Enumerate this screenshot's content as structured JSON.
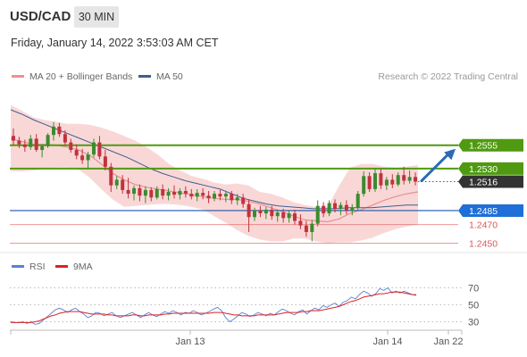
{
  "header": {
    "pair": "USD/CAD",
    "timeframe": "30 MIN",
    "datetime": "Friday, January 14, 2022 3:53:03 AM CET"
  },
  "legend": {
    "ma20_label": "MA 20 + Bollinger Bands",
    "ma50_label": "MA 50",
    "credit": "Research © 2022 Trading Central",
    "rsi_label": "RSI",
    "rsi_ma_label": "9MA"
  },
  "colors": {
    "resistance": "#4f9a10",
    "support_blue": "#1c56a6",
    "support_red": "#e05555",
    "current": "#333333",
    "candle_up": "#3a8c2f",
    "candle_down": "#c0333f",
    "bollinger_fill": "#f9d0d0",
    "ma20": "#e88f8f",
    "ma50": "#3d5f8f",
    "rsi": "#5b80d6",
    "rsi_ma": "#dd2222",
    "arrow": "#2a6bb8"
  },
  "chart_data": [
    {
      "type": "candlestick",
      "y_axis": "price",
      "ylim": [
        1.244,
        1.2615
      ],
      "levels": [
        {
          "name": "resistance-2",
          "value": 1.2555,
          "label": "1.2555",
          "style": "green-badge"
        },
        {
          "name": "resistance-1",
          "value": 1.253,
          "label": "1.2530",
          "style": "green-badge"
        },
        {
          "name": "current-price",
          "value": 1.2516,
          "label": "1.2516",
          "style": "dark-badge"
        },
        {
          "name": "support-1",
          "value": 1.2485,
          "label": "1.2485",
          "style": "blue-badge"
        },
        {
          "name": "support-2",
          "value": 1.247,
          "label": "1.2470",
          "style": "red-text"
        },
        {
          "name": "support-3",
          "value": 1.245,
          "label": "1.2450",
          "style": "red-text"
        }
      ],
      "candles": [
        [
          1.2565,
          1.2573,
          1.2555,
          1.256
        ],
        [
          1.256,
          1.2564,
          1.2552,
          1.2556
        ],
        [
          1.2556,
          1.2561,
          1.2548,
          1.2553
        ],
        [
          1.2553,
          1.2566,
          1.255,
          1.2562
        ],
        [
          1.2562,
          1.2567,
          1.2548,
          1.255
        ],
        [
          1.255,
          1.2556,
          1.2542,
          1.2554
        ],
        [
          1.2554,
          1.2568,
          1.2552,
          1.2566
        ],
        [
          1.2566,
          1.258,
          1.256,
          1.2575
        ],
        [
          1.2575,
          1.2579,
          1.2564,
          1.2567
        ],
        [
          1.2567,
          1.2571,
          1.2555,
          1.2558
        ],
        [
          1.2558,
          1.2562,
          1.2547,
          1.255
        ],
        [
          1.255,
          1.2556,
          1.254,
          1.2544
        ],
        [
          1.2544,
          1.2551,
          1.2535,
          1.2539
        ],
        [
          1.2539,
          1.2548,
          1.253,
          1.2545
        ],
        [
          1.2545,
          1.2562,
          1.2542,
          1.2558
        ],
        [
          1.2558,
          1.2565,
          1.254,
          1.2543
        ],
        [
          1.2543,
          1.255,
          1.2528,
          1.2532
        ],
        [
          1.2532,
          1.2536,
          1.2505,
          1.2512
        ],
        [
          1.2512,
          1.2522,
          1.2508,
          1.2518
        ],
        [
          1.2518,
          1.2523,
          1.2503,
          1.2507
        ],
        [
          1.2507,
          1.252,
          1.2498,
          1.2503
        ],
        [
          1.2503,
          1.2512,
          1.2496,
          1.2509
        ],
        [
          1.2509,
          1.2513,
          1.2495,
          1.2501
        ],
        [
          1.2501,
          1.2511,
          1.2493,
          1.2507
        ],
        [
          1.2507,
          1.251,
          1.2495,
          1.2499
        ],
        [
          1.2499,
          1.2511,
          1.2497,
          1.2508
        ],
        [
          1.2508,
          1.2513,
          1.2497,
          1.2501
        ],
        [
          1.2501,
          1.2509,
          1.2496,
          1.2505
        ],
        [
          1.2505,
          1.2512,
          1.2498,
          1.2502
        ],
        [
          1.2502,
          1.2509,
          1.2497,
          1.2506
        ],
        [
          1.2506,
          1.2511,
          1.2499,
          1.2503
        ],
        [
          1.2503,
          1.2508,
          1.2497,
          1.25
        ],
        [
          1.25,
          1.2508,
          1.2495,
          1.2504
        ],
        [
          1.2504,
          1.2509,
          1.2497,
          1.2501
        ],
        [
          1.2501,
          1.2506,
          1.2493,
          1.2498
        ],
        [
          1.2498,
          1.2506,
          1.2495,
          1.2503
        ],
        [
          1.2503,
          1.2507,
          1.2496,
          1.25
        ],
        [
          1.25,
          1.2506,
          1.2494,
          1.2503
        ],
        [
          1.2503,
          1.2506,
          1.2492,
          1.2496
        ],
        [
          1.2496,
          1.2503,
          1.2491,
          1.2499
        ],
        [
          1.2499,
          1.2503,
          1.2488,
          1.2492
        ],
        [
          1.2492,
          1.2497,
          1.2462,
          1.2478
        ],
        [
          1.2478,
          1.2488,
          1.2474,
          1.2485
        ],
        [
          1.2485,
          1.249,
          1.2478,
          1.2482
        ],
        [
          1.2482,
          1.2489,
          1.2476,
          1.2486
        ],
        [
          1.2486,
          1.249,
          1.2475,
          1.2479
        ],
        [
          1.2479,
          1.2486,
          1.2473,
          1.2483
        ],
        [
          1.2483,
          1.2487,
          1.2472,
          1.2477
        ],
        [
          1.2477,
          1.2485,
          1.2472,
          1.2482
        ],
        [
          1.2482,
          1.2486,
          1.247,
          1.2474
        ],
        [
          1.2474,
          1.2481,
          1.2465,
          1.2469
        ],
        [
          1.2469,
          1.2474,
          1.2457,
          1.2462
        ],
        [
          1.2462,
          1.2475,
          1.2452,
          1.2471
        ],
        [
          1.2471,
          1.2496,
          1.2468,
          1.249
        ],
        [
          1.249,
          1.2494,
          1.2478,
          1.2482
        ],
        [
          1.2482,
          1.2496,
          1.2479,
          1.2493
        ],
        [
          1.2493,
          1.2497,
          1.2483,
          1.2487
        ],
        [
          1.2487,
          1.2494,
          1.248,
          1.2491
        ],
        [
          1.2491,
          1.2496,
          1.2481,
          1.2485
        ],
        [
          1.2485,
          1.2492,
          1.248,
          1.2488
        ],
        [
          1.2488,
          1.2506,
          1.2485,
          1.2503
        ],
        [
          1.2503,
          1.2527,
          1.25,
          1.2522
        ],
        [
          1.2522,
          1.2526,
          1.2505,
          1.2508
        ],
        [
          1.2508,
          1.253,
          1.2505,
          1.2525
        ],
        [
          1.2525,
          1.253,
          1.2508,
          1.2512
        ],
        [
          1.2512,
          1.2521,
          1.2507,
          1.2518
        ],
        [
          1.2518,
          1.2524,
          1.2509,
          1.2513
        ],
        [
          1.2513,
          1.2526,
          1.2511,
          1.2523
        ],
        [
          1.2523,
          1.2532,
          1.2513,
          1.2517
        ],
        [
          1.2517,
          1.2528,
          1.2514,
          1.2521
        ],
        [
          1.2521,
          1.2526,
          1.2512,
          1.2516
        ]
      ],
      "bollinger": {
        "upper": [
          1.2598,
          1.2592,
          1.2585,
          1.2582,
          1.258,
          1.2578,
          1.2578,
          1.2577,
          1.2574,
          1.257,
          1.2565,
          1.256,
          1.2553,
          1.2545,
          1.2535,
          1.2528,
          1.2522,
          1.2519,
          1.2515,
          1.2513,
          1.2514,
          1.2512,
          1.2505,
          1.2503,
          1.2499,
          1.2494,
          1.2491,
          1.2489,
          1.2489,
          1.2511,
          1.2531,
          1.2535,
          1.2535,
          1.2532,
          1.2531,
          1.2532,
          1.2534
        ],
        "lower": [
          1.2527,
          1.2527,
          1.2528,
          1.253,
          1.2531,
          1.2531,
          1.2529,
          1.252,
          1.2508,
          1.2497,
          1.2489,
          1.249,
          1.2491,
          1.2492,
          1.2492,
          1.2491,
          1.2489,
          1.2486,
          1.2479,
          1.2472,
          1.2464,
          1.2458,
          1.2454,
          1.2452,
          1.2452,
          1.2455,
          1.2455,
          1.2452,
          1.245,
          1.2451,
          1.2451,
          1.2453,
          1.2456,
          1.2461,
          1.2465,
          1.2468,
          1.247
        ],
        "ma20": [
          1.2562,
          1.2559,
          1.2556,
          1.2556,
          1.2555,
          1.2553,
          1.255,
          1.2544,
          1.2535,
          1.2525,
          1.2518,
          1.2513,
          1.251,
          1.2508,
          1.2506,
          1.2504,
          1.2502,
          1.25,
          1.2498,
          1.2497,
          1.2497,
          1.2495,
          1.2492,
          1.2488,
          1.2484,
          1.2479,
          1.2475,
          1.2474,
          1.2473,
          1.2476,
          1.2482,
          1.2486,
          1.2491,
          1.2496,
          1.25,
          1.2503,
          1.2505
        ]
      },
      "ma50": [
        1.2593,
        1.2588,
        1.2582,
        1.2577,
        1.2572,
        1.2567,
        1.2562,
        1.2557,
        1.2552,
        1.2547,
        1.2542,
        1.2536,
        1.253,
        1.2525,
        1.2521,
        1.2517,
        1.2514,
        1.2511,
        1.2508,
        1.2503,
        1.2498,
        1.2495,
        1.2492,
        1.249,
        1.2489,
        1.2488,
        1.2487,
        1.2487,
        1.2487,
        1.2488,
        1.2488,
        1.2488,
        1.2489,
        1.249,
        1.2491,
        1.2491
      ],
      "projection_arrow": {
        "from": 1.2516,
        "to": 1.2555
      }
    },
    {
      "type": "line",
      "name": "RSI",
      "ylim": [
        20,
        80
      ],
      "gridlines": [
        70,
        50,
        30
      ],
      "tick_labels": [
        "70",
        "50",
        "30"
      ],
      "rsi": [
        30,
        29,
        29,
        30,
        28,
        30,
        27,
        28,
        32,
        36,
        40,
        44,
        46,
        44,
        41,
        44,
        46,
        42,
        39,
        35,
        37,
        41,
        40,
        37,
        39,
        41,
        37,
        35,
        37,
        39,
        41,
        38,
        35,
        38,
        41,
        38,
        36,
        39,
        42,
        40,
        43,
        41,
        38,
        41,
        40,
        43,
        41,
        38,
        40,
        42,
        45,
        47,
        43,
        35,
        30,
        33,
        37,
        41,
        39,
        36,
        38,
        41,
        39,
        37,
        40,
        38,
        42,
        45,
        43,
        40,
        38,
        42,
        44,
        39,
        43,
        46,
        44,
        49,
        47,
        50,
        52,
        48,
        53,
        55,
        59,
        57,
        62,
        66,
        64,
        60,
        63,
        69,
        67,
        70,
        64,
        66,
        64,
        66,
        64,
        62,
        61
      ],
      "ma9": [
        29,
        29,
        29,
        29,
        29,
        29,
        30,
        31,
        33,
        35,
        37,
        38,
        40,
        41,
        42,
        42,
        42,
        42,
        41,
        40,
        39,
        39,
        39,
        39,
        38,
        38,
        37,
        37,
        37,
        37,
        38,
        38,
        37,
        37,
        38,
        38,
        38,
        38,
        39,
        39,
        40,
        40,
        40,
        40,
        40,
        40,
        40,
        40,
        40,
        40,
        41,
        41,
        41,
        40,
        39,
        38,
        38,
        37,
        37,
        37,
        37,
        38,
        38,
        38,
        38,
        38,
        39,
        40,
        41,
        41,
        41,
        41,
        42,
        42,
        43,
        43,
        43,
        44,
        45,
        46,
        47,
        48,
        50,
        52,
        54,
        55,
        57,
        59,
        60,
        61,
        62,
        63,
        63,
        64,
        65,
        65,
        65,
        64,
        63,
        62,
        62
      ],
      "x_tick_labels": [
        "Jan 13",
        "Jan 14",
        "Jan 22"
      ]
    }
  ]
}
